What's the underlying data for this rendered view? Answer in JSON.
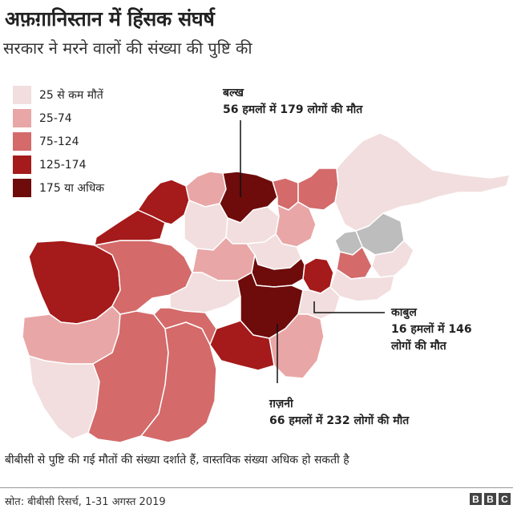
{
  "title": "अफ़ग़ानिस्तान में हिंसक संघर्ष",
  "subtitle": "सरकार ने मरने वालों की संख्या की पुष्टि की",
  "colors": {
    "cat1": "#f2dede",
    "cat2": "#e9a6a6",
    "cat3": "#d46a6a",
    "cat4": "#a51a1a",
    "cat5": "#6e0b0b",
    "nodata": "#bdbdbd",
    "border": "#ffffff",
    "leader": "#111111"
  },
  "legend": [
    {
      "label": "25 से कम मौतें",
      "color": "#f2dede"
    },
    {
      "label": "25-74",
      "color": "#e9a6a6"
    },
    {
      "label": "75-124",
      "color": "#d46a6a"
    },
    {
      "label": "125-174",
      "color": "#a51a1a"
    },
    {
      "label": "175 या अधिक",
      "color": "#6e0b0b"
    }
  ],
  "callouts": {
    "balkh": {
      "name": "बल्ख",
      "detail": "56 हमलों में 179 लोगों की मौत"
    },
    "kabul": {
      "name": "काबुल",
      "detail1": "16 हमलों में 146",
      "detail2": "लोगों की मौत"
    },
    "ghazni": {
      "name": "ग़ज़नी",
      "detail": "66 हमलों में 232 लोगों की मौत"
    }
  },
  "footnote": "बीबीसी से पुष्टि की गई मौतों की संख्या दर्शाते हैं, वास्तविक संख्या अधिक हो सकती है",
  "source": "स्रोत: बीबीसी रिसर्च, 1-31 अगस्त 2019",
  "logo": [
    "B",
    "B",
    "C"
  ]
}
